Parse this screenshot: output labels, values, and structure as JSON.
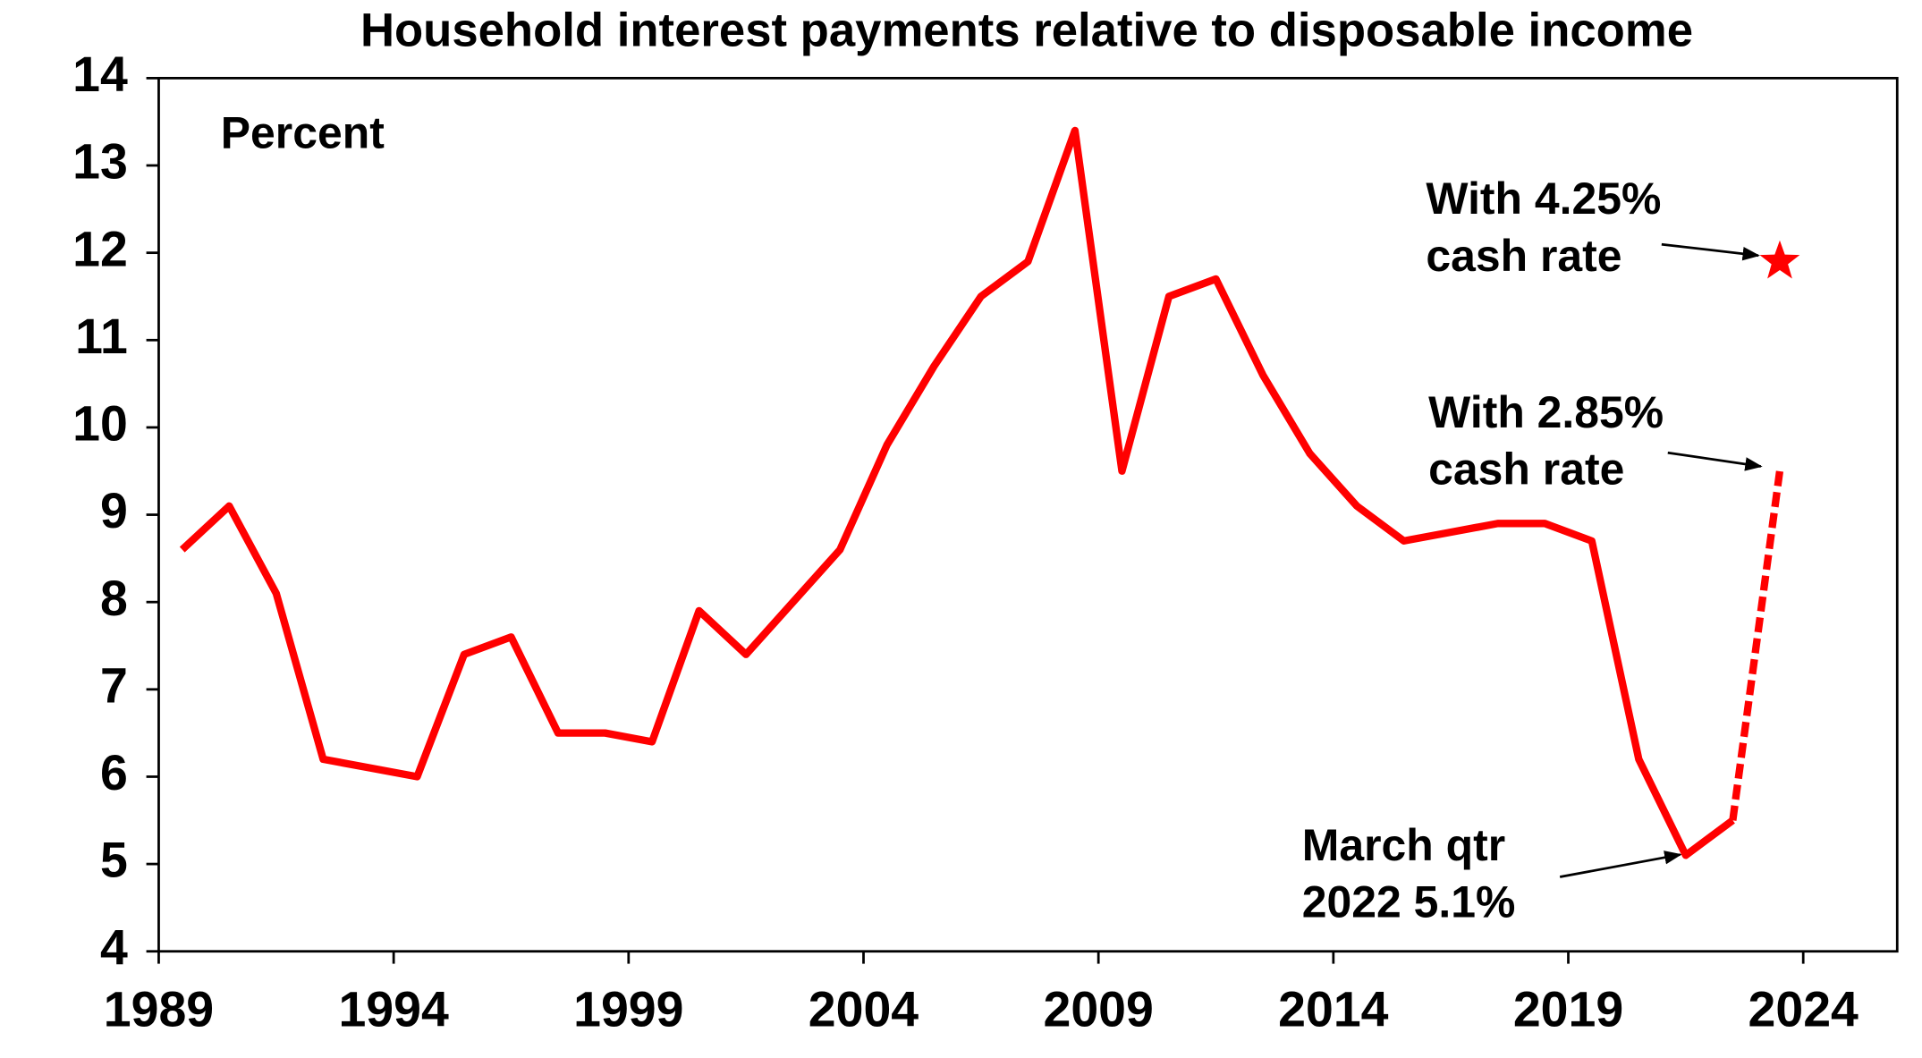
{
  "chart_data": {
    "type": "line",
    "title": "Household interest payments relative to disposable income",
    "y_label": "Percent",
    "xlim": [
      1989,
      2026
    ],
    "xticks": [
      1989,
      1994,
      1999,
      2004,
      2009,
      2014,
      2019,
      2024
    ],
    "ylim": [
      4,
      14
    ],
    "yticks": [
      4,
      5,
      6,
      7,
      8,
      9,
      10,
      11,
      12,
      13,
      14
    ],
    "series": [
      {
        "color": "#ff0000",
        "style": "solid",
        "x": [
          1989.5,
          1990.5,
          1991.5,
          1992.5,
          1993.5,
          1994.5,
          1995.5,
          1996.5,
          1997.5,
          1998.5,
          1999.5,
          2000.5,
          2001.5,
          2002.5,
          2003.5,
          2004.5,
          2005.5,
          2006.5,
          2007.5,
          2008.5,
          2009.5,
          2010.5,
          2011.5,
          2012.5,
          2013.5,
          2014.5,
          2015.5,
          2016.5,
          2017.5,
          2018.5,
          2019.5,
          2020.5,
          2021.5,
          2022.5
        ],
        "values": [
          8.6,
          9.1,
          8.1,
          6.2,
          6.1,
          6.0,
          7.4,
          7.6,
          6.5,
          6.5,
          6.4,
          7.9,
          7.4,
          8.0,
          8.6,
          9.8,
          10.7,
          11.5,
          11.9,
          13.4,
          9.5,
          11.5,
          11.7,
          10.6,
          9.7,
          9.1,
          8.7,
          8.8,
          8.9,
          8.9,
          8.7,
          6.2,
          5.1,
          5.5
        ]
      },
      {
        "color": "#ff0000",
        "style": "dashed",
        "x": [
          2022.5,
          2023.5
        ],
        "values": [
          5.5,
          9.5
        ]
      },
      {
        "color": "#ff0000",
        "style": "star",
        "x": [
          2023.5
        ],
        "values": [
          11.9
        ]
      }
    ],
    "annotations": [
      {
        "lines": [
          "With 4.25%",
          "cash rate"
        ]
      },
      {
        "lines": [
          "With 2.85%",
          "cash rate"
        ]
      },
      {
        "lines": [
          "March qtr",
          "2022 5.1%"
        ]
      }
    ]
  }
}
